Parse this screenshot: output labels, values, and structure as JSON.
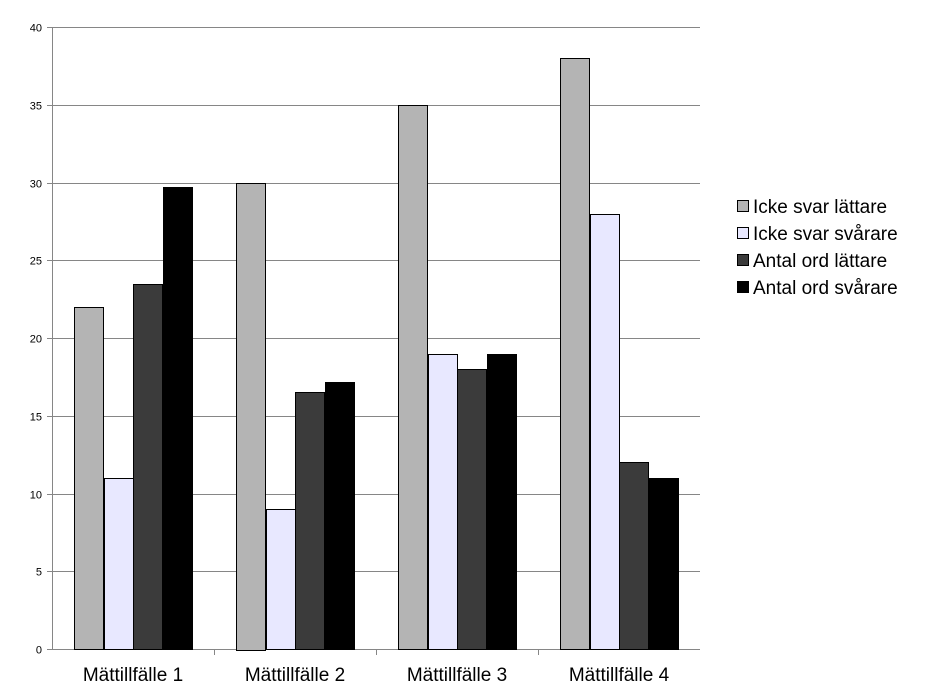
{
  "chart_data": {
    "type": "bar",
    "title": "",
    "xlabel": "",
    "ylabel": "",
    "categories": [
      "Mättillfälle 1",
      "Mättillfälle 2",
      "Mättillfälle 3",
      "Mättillfälle 4"
    ],
    "series": [
      {
        "name": "Icke svar lättare",
        "values": [
          22,
          30,
          35,
          38
        ],
        "color": "#b4b4b4"
      },
      {
        "name": "Icke svar svårare",
        "values": [
          11,
          9,
          19,
          28
        ],
        "color": "#e8e8ff"
      },
      {
        "name": "Antal ord lättare",
        "values": [
          23.5,
          16.5,
          18,
          12
        ],
        "color": "#3b3b3b"
      },
      {
        "name": "Antal ord svårare",
        "values": [
          29.7,
          17.2,
          19,
          11
        ],
        "color": "#000000"
      }
    ],
    "ylim": [
      0,
      40
    ],
    "yticks": [
      0,
      5,
      10,
      15,
      20,
      25,
      30,
      35,
      40
    ],
    "grid": true,
    "legend_position": "right"
  }
}
